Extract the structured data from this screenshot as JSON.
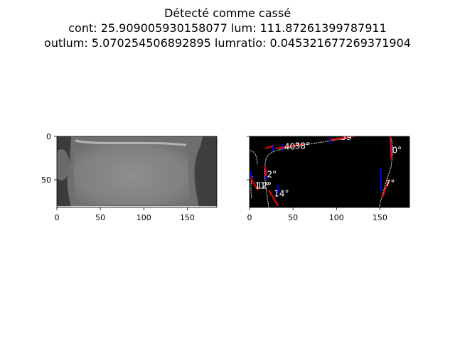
{
  "figure": {
    "title_lines": [
      "Détecté comme cassé",
      "cont: 25.909005930158077 lum: 111.87261399787911",
      "outlum: 5.070254506892895 lumratio: 0.045321677269371904"
    ]
  },
  "chart_data": [
    {
      "type": "image",
      "title": "",
      "xlim": [
        0,
        184
      ],
      "ylim": [
        82,
        0
      ],
      "xticks": [
        0,
        50,
        100,
        150
      ],
      "yticks": [
        0,
        50
      ],
      "xlabel": "",
      "ylabel": "",
      "content": "grayscale CT bone slice"
    },
    {
      "type": "image",
      "title": "",
      "xlim": [
        0,
        184
      ],
      "ylim": [
        82,
        0
      ],
      "xticks": [
        0,
        50,
        100,
        150
      ],
      "yticks": [
        0,
        50
      ],
      "xlabel": "",
      "ylabel": "",
      "content": "black background with white contour, red fitted segments, blue vertical markers and angle labels",
      "angle_labels": [
        {
          "text": "40°",
          "x": 40,
          "y": 12
        },
        {
          "text": "38°",
          "x": 52,
          "y": 11
        },
        {
          "text": "39°",
          "x": 105,
          "y": 1
        },
        {
          "text": "0°",
          "x": 164,
          "y": 16
        },
        {
          "text": "2°",
          "x": 20,
          "y": 44
        },
        {
          "text": "11°",
          "x": 6,
          "y": 57
        },
        {
          "text": "12°",
          "x": 8,
          "y": 57
        },
        {
          "text": "14°",
          "x": 28,
          "y": 66
        },
        {
          "text": "7°",
          "x": 156,
          "y": 54
        }
      ],
      "red_segments": [
        {
          "x": [
            18,
            27
          ],
          "y": [
            14,
            11
          ]
        },
        {
          "x": [
            30,
            62
          ],
          "y": [
            14,
            9
          ]
        },
        {
          "x": [
            93,
            120
          ],
          "y": [
            4,
            0
          ]
        },
        {
          "x": [
            162,
            163
          ],
          "y": [
            0,
            26
          ]
        },
        {
          "x": [
            1,
            10
          ],
          "y": [
            48,
            62
          ]
        },
        {
          "x": [
            22,
            33
          ],
          "y": [
            62,
            80
          ]
        },
        {
          "x": [
            153,
            160
          ],
          "y": [
            70,
            50
          ]
        },
        {
          "x": [
            18,
            19
          ],
          "y": [
            34,
            46
          ]
        }
      ],
      "blue_markers": [
        {
          "x": 27,
          "y": [
            10,
            17
          ]
        },
        {
          "x": 38,
          "y": [
            9,
            16
          ]
        },
        {
          "x": 93,
          "y": [
            1,
            8
          ]
        },
        {
          "x": 163,
          "y": [
            8,
            26
          ]
        },
        {
          "x": 2,
          "y": [
            40,
            50
          ]
        },
        {
          "x": 19,
          "y": [
            38,
            50
          ]
        },
        {
          "x": 33,
          "y": [
            56,
            66
          ]
        },
        {
          "x": 151,
          "y": [
            37,
            62
          ]
        }
      ]
    }
  ]
}
